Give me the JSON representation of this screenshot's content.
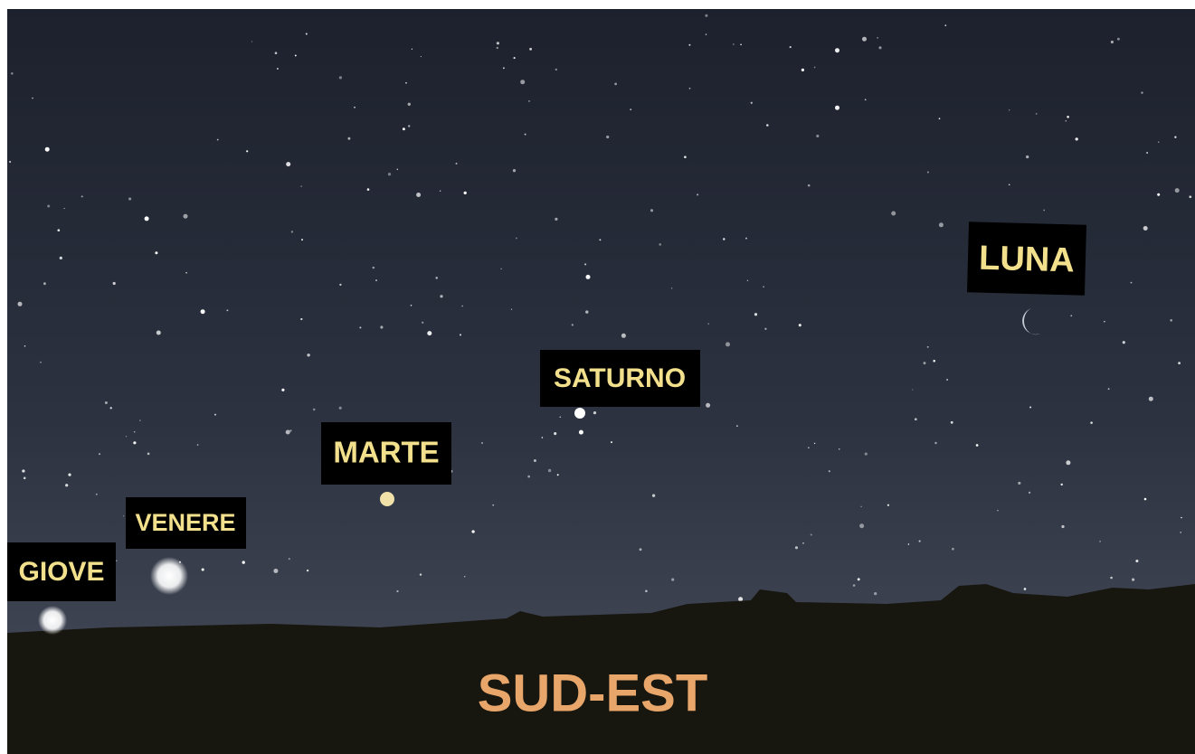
{
  "labels": {
    "jupiter": "GIOVE",
    "venus": "VENERE",
    "mars": "MARTE",
    "saturn": "SATURNO",
    "moon": "LUNA"
  },
  "direction": "SUD-EST"
}
